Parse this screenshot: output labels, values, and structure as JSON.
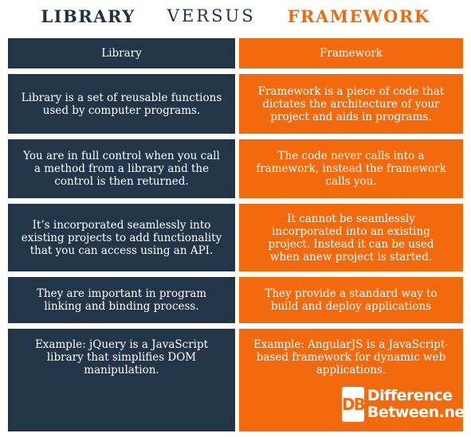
{
  "title": {
    "left": "LIBRARY",
    "middle": "VERSUS",
    "right": "FRAMEWORK"
  },
  "table": {
    "headers": [
      "Library",
      "Framework"
    ],
    "rows": [
      {
        "library": "Library is a set of reusable functions used by computer programs.",
        "framework": "Framework is a piece of code that dictates the architecture of your project and aids in programs."
      },
      {
        "library": "You are in full control when you call a method from a library and the control is then returned.",
        "framework": "The code never calls into a framework, instead the framework calls you."
      },
      {
        "library": "It’s incorporated seamlessly into existing projects to add functionality that you can access using an API.",
        "framework": "It cannot be seamlessly incorporated into an existing project. Instead it can be used when anew project is started."
      },
      {
        "library": "They are important in program linking and binding process.",
        "framework": "They provide a standard way to build and deploy applications"
      },
      {
        "library": "Example: jQuery is a JavaScript library that simplifies DOM manipulation.",
        "framework": "Example: AngularJS is a JavaScript-based framework for dynamic web applications."
      }
    ]
  },
  "logo": {
    "mark": "DB",
    "line1": "Difference",
    "line2": "Between.net"
  },
  "colors": {
    "navy": "#233649",
    "orange": "#f3690e"
  }
}
